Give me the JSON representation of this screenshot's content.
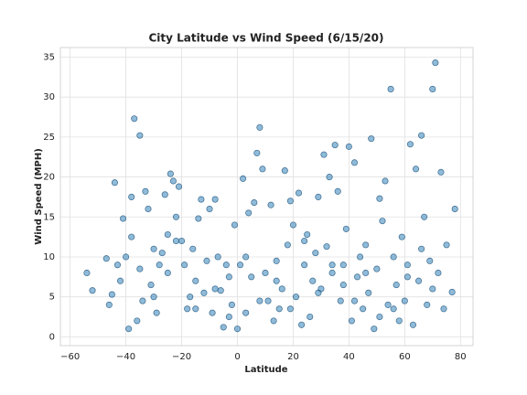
{
  "chart_data": {
    "type": "scatter",
    "title": "City Latitude vs Wind Speed (6/15/20)",
    "xlabel": "Latitude",
    "ylabel": "Wind Speed (MPH)",
    "xlim": [
      -63.5,
      84.5
    ],
    "ylim": [
      -1.1,
      36.2
    ],
    "xticks": [
      {
        "value": -60,
        "label": "−60"
      },
      {
        "value": -40,
        "label": "−40"
      },
      {
        "value": -20,
        "label": "−20"
      },
      0,
      20,
      40,
      60,
      80
    ],
    "yticks": [
      0,
      5,
      10,
      15,
      20,
      25,
      30,
      35
    ],
    "grid": true,
    "color": "#1f77b4",
    "x": [
      -54,
      -52,
      -47,
      -46,
      -45,
      -44,
      -43,
      -42,
      -41,
      -40,
      -39,
      -38,
      -37,
      -36,
      -35,
      -35,
      -34,
      -33,
      -32,
      -31,
      -30,
      -29,
      -28,
      -27,
      -26,
      -25,
      -24,
      -23,
      -22,
      -21,
      -20,
      -19,
      -18,
      -17,
      -16,
      -15,
      -14,
      -13,
      -12,
      -11,
      -10,
      -9,
      -8,
      -7,
      -6,
      -5,
      -4,
      -3,
      -2,
      -1,
      0,
      1,
      2,
      3,
      4,
      5,
      6,
      7,
      8,
      9,
      10,
      11,
      12,
      13,
      14,
      15,
      16,
      17,
      18,
      19,
      20,
      21,
      22,
      23,
      24,
      25,
      26,
      27,
      28,
      29,
      30,
      31,
      32,
      33,
      34,
      35,
      36,
      37,
      38,
      39,
      40,
      41,
      42,
      43,
      44,
      45,
      46,
      47,
      48,
      49,
      50,
      51,
      52,
      53,
      54,
      55,
      56,
      57,
      58,
      59,
      60,
      61,
      62,
      63,
      64,
      65,
      66,
      67,
      68,
      69,
      70,
      71,
      72,
      73,
      74,
      75,
      77,
      78,
      -38,
      -30,
      -25,
      -22,
      -15,
      -8,
      -3,
      3,
      8,
      14,
      19,
      24,
      29,
      34,
      38,
      42,
      46,
      51,
      56,
      61,
      66,
      70
    ],
    "y": [
      8,
      5.8,
      9.8,
      4,
      5.3,
      19.3,
      9,
      7,
      14.8,
      10,
      1,
      17.5,
      27.3,
      2,
      25.2,
      8.5,
      4.5,
      18.2,
      16,
      6.5,
      11,
      3,
      9,
      10.5,
      17.8,
      12.8,
      20.4,
      19.5,
      15,
      18.8,
      12,
      9,
      3.5,
      5,
      11,
      7,
      14.8,
      17.2,
      5.5,
      9.5,
      16,
      3,
      17.2,
      10,
      5.8,
      1.2,
      9,
      7.5,
      4,
      14,
      1,
      9,
      19.8,
      3,
      15.5,
      7.5,
      16.8,
      23,
      26.2,
      21,
      8,
      4.5,
      16.5,
      2,
      9.5,
      3.5,
      6,
      20.8,
      11.5,
      17,
      14,
      5,
      18,
      1.5,
      9,
      12.8,
      2.5,
      7,
      10.5,
      17.5,
      6,
      22.8,
      11.3,
      20,
      8,
      24,
      18.2,
      4.5,
      9,
      13.5,
      23.8,
      2,
      21.8,
      7.5,
      10,
      3.5,
      11.5,
      5.5,
      24.8,
      1,
      8.5,
      17.3,
      14.5,
      19.5,
      4,
      31,
      10,
      6.5,
      2,
      12.5,
      4.5,
      9,
      24.1,
      1.5,
      21,
      7,
      25.2,
      15,
      4,
      9.5,
      31,
      34.3,
      8,
      20.6,
      3.5,
      11.5,
      5.6,
      16,
      12.5,
      5,
      8,
      12,
      3.5,
      6,
      2.5,
      10,
      4.5,
      7,
      3.5,
      12,
      5.5,
      9,
      6.5,
      4.5,
      8,
      2.5,
      3.5,
      7.5,
      11,
      6
    ]
  }
}
